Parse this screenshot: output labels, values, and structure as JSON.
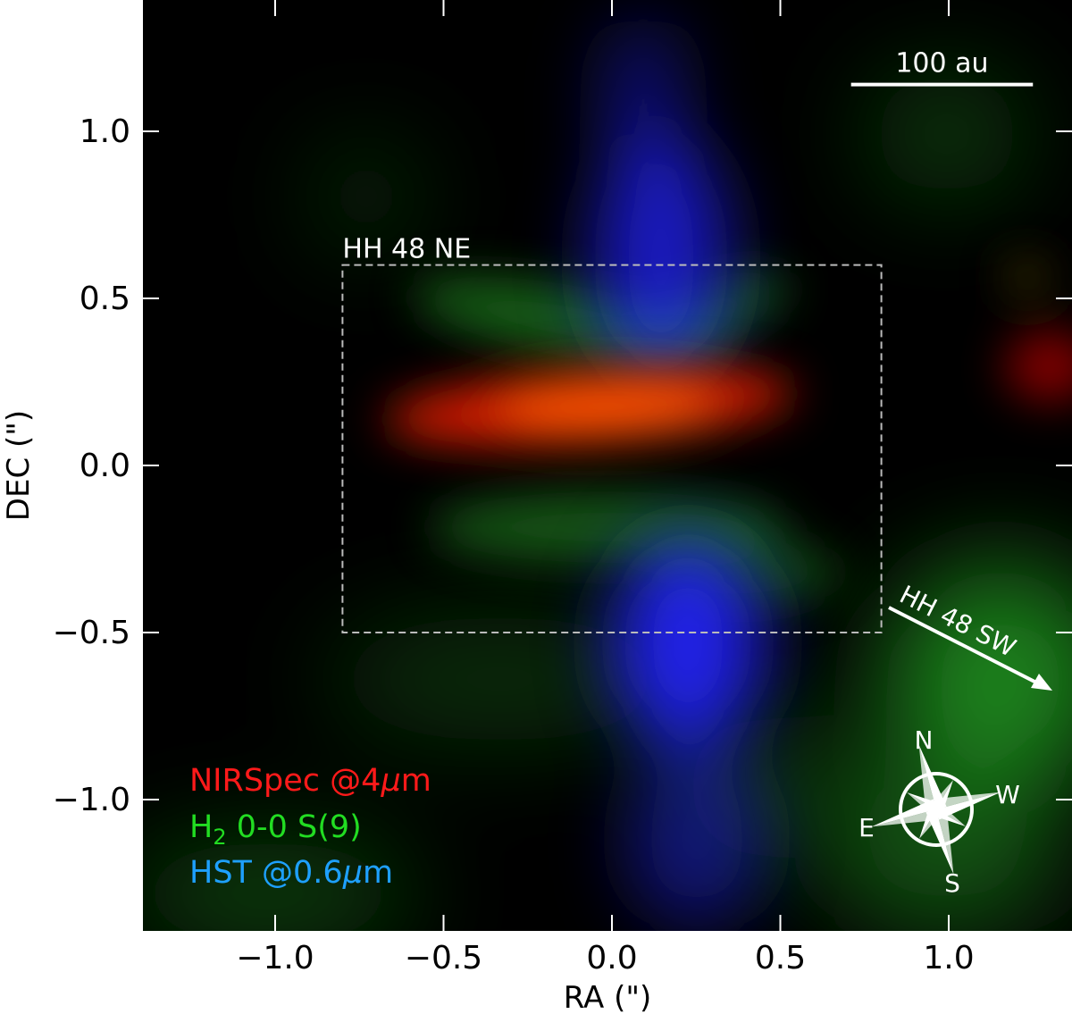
{
  "axes": {
    "xlabel": "RA (\")",
    "ylabel": "DEC (\")",
    "xlim": [
      -1.4,
      1.35
    ],
    "ylim": [
      -1.4,
      1.4
    ],
    "xticks": [
      {
        "value": -1.0,
        "label": "−1.0"
      },
      {
        "value": -0.5,
        "label": "−0.5"
      },
      {
        "value": 0.0,
        "label": "0.0"
      },
      {
        "value": 0.5,
        "label": "0.5"
      },
      {
        "value": 1.0,
        "label": "1.0"
      }
    ],
    "yticks": [
      {
        "value": 1.0,
        "label": "1.0"
      },
      {
        "value": 0.5,
        "label": "0.5"
      },
      {
        "value": 0.0,
        "label": "0.0"
      },
      {
        "value": -0.5,
        "label": "−0.5"
      },
      {
        "value": -1.0,
        "label": "−1.0"
      }
    ]
  },
  "region": {
    "label": "HH 48 NE",
    "ra": [
      -0.8,
      0.8
    ],
    "dec": [
      -0.5,
      0.6
    ]
  },
  "arrow_label": "HH 48 SW",
  "scalebar": {
    "label": "100 au",
    "ra": [
      0.71,
      1.25
    ],
    "dec": 1.14
  },
  "legend": [
    {
      "text": "NIRSpec @4",
      "greek": "μ",
      "tail": "m",
      "color": "#ff1a1a"
    },
    {
      "text": "H",
      "sub": "2",
      "tail": " 0-0 S(9)",
      "color": "#22dd22"
    },
    {
      "text": "HST @0.6",
      "greek": "μ",
      "tail": "m",
      "color": "#1ea0ff"
    }
  ],
  "compass": {
    "n": "N",
    "s": "S",
    "e": "E",
    "w": "W"
  },
  "colors": {
    "red": "#ff3300",
    "green": "#22aa22",
    "blue": "#2020ff"
  }
}
